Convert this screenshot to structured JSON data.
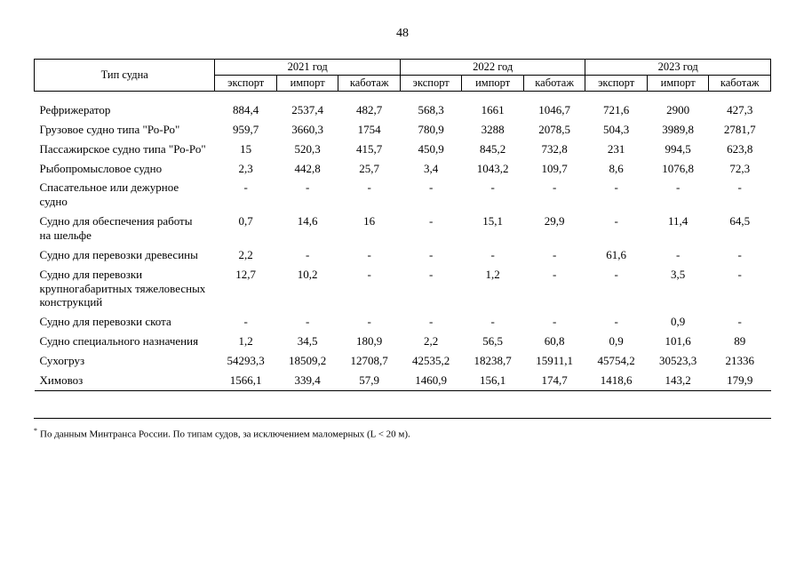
{
  "page": {
    "number": "48"
  },
  "table": {
    "type_column_header": "Тип судна",
    "year_groups": [
      "2021 год",
      "2022 год",
      "2023 год"
    ],
    "sub_headers": [
      "экспорт",
      "импорт",
      "каботаж"
    ],
    "rows": [
      {
        "type": "Рефрижератор",
        "values": [
          "884,4",
          "2537,4",
          "482,7",
          "568,3",
          "1661",
          "1046,7",
          "721,6",
          "2900",
          "427,3"
        ]
      },
      {
        "type": "Грузовое судно типа \"Ро-Ро\"",
        "values": [
          "959,7",
          "3660,3",
          "1754",
          "780,9",
          "3288",
          "2078,5",
          "504,3",
          "3989,8",
          "2781,7"
        ]
      },
      {
        "type": "Пассажирское судно типа \"Ро-Ро\"",
        "values": [
          "15",
          "520,3",
          "415,7",
          "450,9",
          "845,2",
          "732,8",
          "231",
          "994,5",
          "623,8"
        ]
      },
      {
        "type": "Рыбопромысловое судно",
        "values": [
          "2,3",
          "442,8",
          "25,7",
          "3,4",
          "1043,2",
          "109,7",
          "8,6",
          "1076,8",
          "72,3"
        ]
      },
      {
        "type": "Спасательное или дежурное судно",
        "values": [
          "-",
          "-",
          "-",
          "-",
          "-",
          "-",
          "-",
          "-",
          "-"
        ]
      },
      {
        "type": "Судно для обеспечения работы на шельфе",
        "values": [
          "0,7",
          "14,6",
          "16",
          "-",
          "15,1",
          "29,9",
          "-",
          "11,4",
          "64,5"
        ]
      },
      {
        "type": "Судно для перевозки древесины",
        "values": [
          "2,2",
          "-",
          "-",
          "-",
          "-",
          "-",
          "61,6",
          "-",
          "-"
        ]
      },
      {
        "type": "Судно для перевозки крупногабаритных тяжеловесных конструкций",
        "values": [
          "12,7",
          "10,2",
          "-",
          "-",
          "1,2",
          "-",
          "-",
          "3,5",
          "-"
        ]
      },
      {
        "type": "Судно для перевозки скота",
        "values": [
          "-",
          "-",
          "-",
          "-",
          "-",
          "-",
          "-",
          "0,9",
          "-"
        ]
      },
      {
        "type": "Судно специального назначения",
        "values": [
          "1,2",
          "34,5",
          "180,9",
          "2,2",
          "56,5",
          "60,8",
          "0,9",
          "101,6",
          "89"
        ]
      },
      {
        "type": "Сухогруз",
        "values": [
          "54293,3",
          "18509,2",
          "12708,7",
          "42535,2",
          "18238,7",
          "15911,1",
          "45754,2",
          "30523,3",
          "21336"
        ]
      },
      {
        "type": "Химовоз",
        "values": [
          "1566,1",
          "339,4",
          "57,9",
          "1460,9",
          "156,1",
          "174,7",
          "1418,6",
          "143,2",
          "179,9"
        ]
      }
    ]
  },
  "footnote": {
    "marker": "*",
    "text": "По данным Минтранса России. По типам судов, за исключением маломерных (L < 20 м)."
  }
}
